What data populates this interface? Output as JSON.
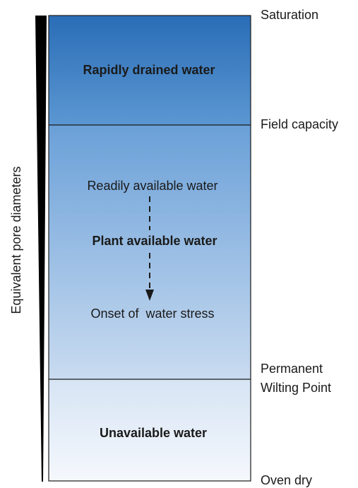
{
  "axis_label": "Equivalent pore diameters",
  "levels": [
    "Saturation",
    "Field capacity",
    "Permanent",
    "Wilting Point",
    "Oven dry"
  ],
  "zones": {
    "top": "Rapidly drained water",
    "middle": {
      "upper": "Readily available water",
      "title": "Plant available water",
      "lower": "Onset of  water stress"
    },
    "bottom": "Unavailable water"
  }
}
